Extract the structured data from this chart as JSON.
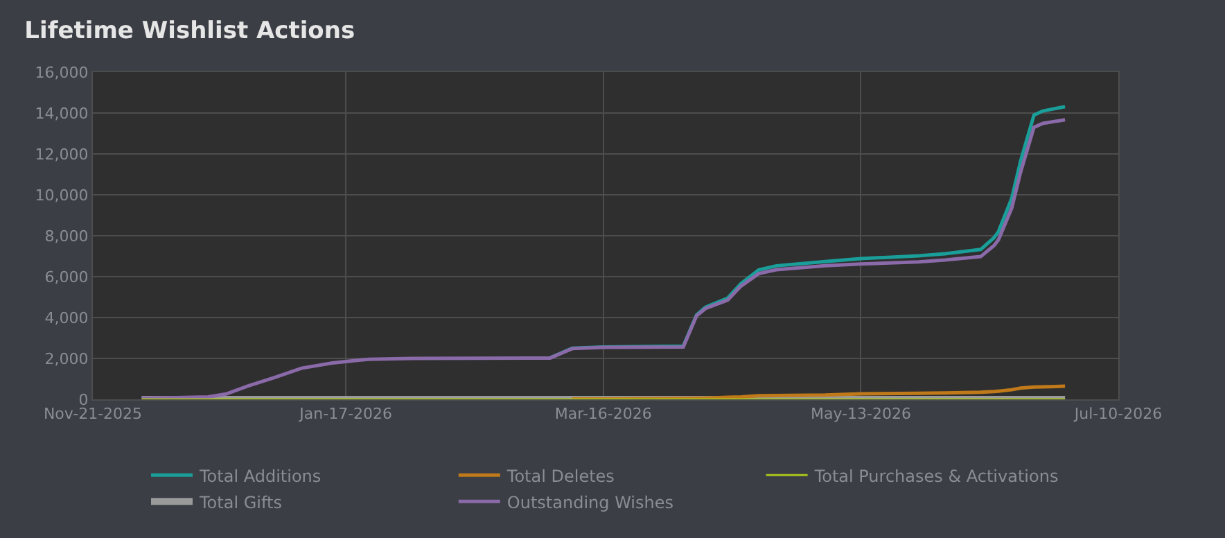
{
  "chart_data": {
    "type": "line",
    "title": "Lifetime Wishlist Actions",
    "x": [
      "2025-12-02",
      "2025-12-17",
      "2025-12-21",
      "2025-12-26",
      "2026-01-01",
      "2026-01-07",
      "2026-01-14",
      "2026-01-22",
      "2026-02-01",
      "2026-03-04",
      "2026-03-09",
      "2026-03-16",
      "2026-04-03",
      "2026-04-06",
      "2026-04-08",
      "2026-04-13",
      "2026-04-16",
      "2026-04-20",
      "2026-04-24",
      "2026-05-05",
      "2026-05-13",
      "2026-05-26",
      "2026-06-01",
      "2026-06-09",
      "2026-06-12",
      "2026-06-13",
      "2026-06-16",
      "2026-06-18",
      "2026-06-21",
      "2026-06-23",
      "2026-06-28"
    ],
    "series": [
      {
        "name": "Total Additions",
        "color": "#1a9e9a",
        "values": [
          null,
          null,
          null,
          null,
          null,
          null,
          null,
          null,
          null,
          2030,
          2500,
          2560,
          2600,
          4130,
          4500,
          4950,
          5660,
          6330,
          6530,
          6740,
          6880,
          7020,
          7120,
          7330,
          7900,
          8200,
          9830,
          11660,
          13900,
          14100,
          14310
        ]
      },
      {
        "name": "Total Deletes",
        "color": "#c07a1a",
        "values": [
          null,
          null,
          null,
          null,
          null,
          null,
          null,
          null,
          null,
          null,
          20,
          20,
          40,
          50,
          60,
          100,
          120,
          180,
          190,
          210,
          270,
          300,
          310,
          350,
          380,
          400,
          470,
          550,
          600,
          610,
          640
        ]
      },
      {
        "name": "Total Purchases & Activations",
        "color": "#a8c41a",
        "values": [
          0,
          0,
          0,
          0,
          0,
          0,
          0,
          0,
          0,
          0,
          0,
          0,
          0,
          0,
          0,
          0,
          0,
          0,
          0,
          0,
          0,
          0,
          0,
          0,
          0,
          0,
          0,
          0,
          0,
          0,
          0
        ]
      },
      {
        "name": "Total Gifts",
        "color": "#9a9a9a",
        "values": [
          0,
          0,
          0,
          0,
          0,
          0,
          0,
          0,
          0,
          0,
          0,
          0,
          0,
          0,
          0,
          0,
          0,
          0,
          0,
          0,
          0,
          0,
          0,
          0,
          0,
          0,
          0,
          0,
          0,
          0,
          0
        ]
      },
      {
        "name": "Outstanding Wishes",
        "color": "#8a6aa8",
        "values": [
          50,
          120,
          260,
          660,
          1070,
          1520,
          1780,
          1960,
          2000,
          2020,
          2480,
          2540,
          2560,
          4080,
          4440,
          4850,
          5540,
          6150,
          6340,
          6530,
          6620,
          6720,
          6810,
          6980,
          7520,
          7800,
          9360,
          11110,
          13300,
          13490,
          13670
        ]
      }
    ],
    "xlim": [
      "2025-11-21",
      "2026-07-10"
    ],
    "xticks": [
      {
        "value": "2025-11-21",
        "label": "Nov-21-2025"
      },
      {
        "value": "2026-01-17",
        "label": "Jan-17-2026"
      },
      {
        "value": "2026-03-16",
        "label": "Mar-16-2026"
      },
      {
        "value": "2026-05-13",
        "label": "May-13-2026"
      },
      {
        "value": "2026-07-10",
        "label": "Jul-10-2026"
      }
    ],
    "ylim": [
      0,
      16000
    ],
    "yticks": [
      0,
      {
        "value": 2000,
        "label": "2,000"
      },
      {
        "value": 4000,
        "label": "4,000"
      },
      {
        "value": 6000,
        "label": "6,000"
      },
      {
        "value": 8000,
        "label": "8,000"
      },
      {
        "value": 10000,
        "label": "10,000"
      },
      {
        "value": 12000,
        "label": "12,000"
      },
      {
        "value": 14000,
        "label": "14,000"
      },
      {
        "value": 16000,
        "label": "16,000"
      }
    ],
    "grid": true,
    "legend": "bottom"
  }
}
